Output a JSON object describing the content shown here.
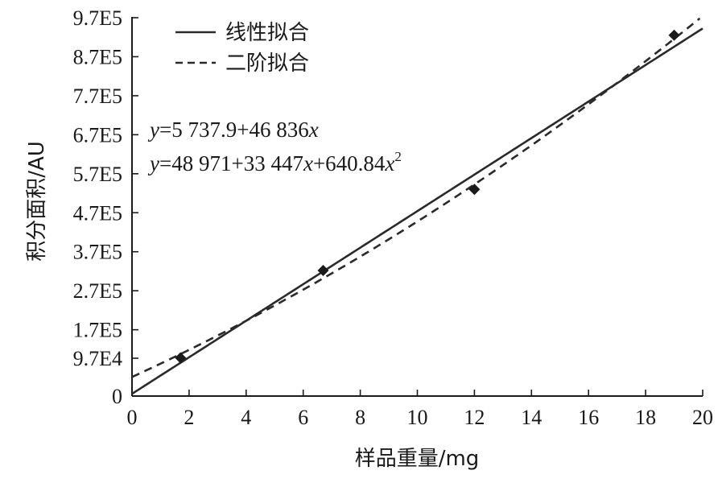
{
  "chart_data": {
    "type": "scatter",
    "title": "",
    "xlabel": "样品重量/mg",
    "ylabel": "积分面积/AU",
    "xlim": [
      0,
      20
    ],
    "ylim": [
      0,
      970000
    ],
    "x_ticks": [
      {
        "value": 0,
        "label": "0"
      },
      {
        "value": 2,
        "label": "2"
      },
      {
        "value": 4,
        "label": "4"
      },
      {
        "value": 6,
        "label": "6"
      },
      {
        "value": 8,
        "label": "8"
      },
      {
        "value": 10,
        "label": "10"
      },
      {
        "value": 12,
        "label": "12"
      },
      {
        "value": 14,
        "label": "14"
      },
      {
        "value": 16,
        "label": "16"
      },
      {
        "value": 18,
        "label": "18"
      },
      {
        "value": 20,
        "label": "20"
      }
    ],
    "y_ticks": [
      {
        "value": 0,
        "label": "0"
      },
      {
        "value": 97000,
        "label": "9.7E4"
      },
      {
        "value": 170000,
        "label": "1.7E5"
      },
      {
        "value": 270000,
        "label": "2.7E5"
      },
      {
        "value": 370000,
        "label": "3.7E5"
      },
      {
        "value": 470000,
        "label": "4.7E5"
      },
      {
        "value": 570000,
        "label": "5.7E5"
      },
      {
        "value": 670000,
        "label": "6.7E5"
      },
      {
        "value": 770000,
        "label": "7.7E5"
      },
      {
        "value": 870000,
        "label": "8.7E5"
      },
      {
        "value": 970000,
        "label": "9.7E5"
      }
    ],
    "grid": false,
    "legend_position": "top-left",
    "points": [
      {
        "x": 1.7,
        "y": 98000
      },
      {
        "x": 6.7,
        "y": 322000
      },
      {
        "x": 12.0,
        "y": 530000
      },
      {
        "x": 19.0,
        "y": 925000
      }
    ],
    "series": [
      {
        "name": "线性拟合",
        "style": "solid",
        "fit": "linear",
        "coefficients": [
          5737.9,
          46836
        ]
      },
      {
        "name": "二阶拟合",
        "style": "dashed",
        "fit": "quadratic",
        "coefficients": [
          48971,
          33447,
          640.84
        ]
      }
    ],
    "equations": [
      {
        "lhs": "y",
        "rest": "=5 737.9+46 836",
        "var": "x",
        "tail": "",
        "power": ""
      },
      {
        "lhs": "y",
        "rest": "=48 971+33 447",
        "var": "x",
        "tail": "+640.84",
        "var2": "x",
        "power": "2"
      }
    ]
  },
  "colors": {
    "axis": "#1a1a1a",
    "line": "#2a2a2a",
    "marker": "#1a1a1a"
  }
}
